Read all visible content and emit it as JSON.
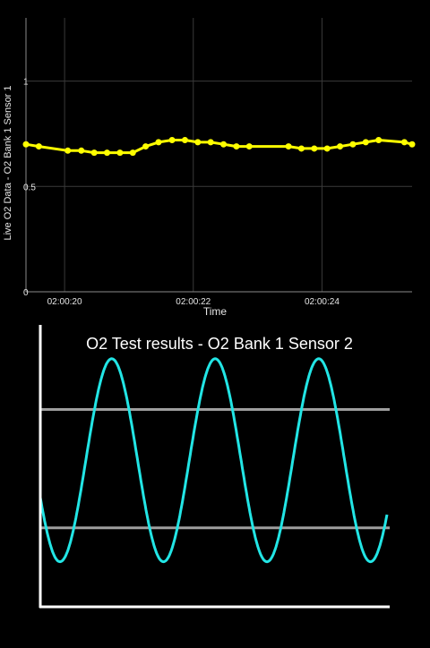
{
  "chart_data": [
    {
      "type": "line",
      "title": "",
      "xlabel": "Time",
      "ylabel": "Live O2 Data - O2 Bank 1 Sensor 1",
      "x_tick_labels": [
        "02:00:20",
        "02:00:22",
        "02:00:24"
      ],
      "x_tick_values": [
        20,
        22,
        24
      ],
      "y_tick_labels": [
        "0",
        "0.5",
        "1"
      ],
      "y_tick_values": [
        0,
        0.5,
        1
      ],
      "xlim": [
        19.4,
        25.4
      ],
      "ylim": [
        0,
        1.3
      ],
      "grid": true,
      "series": [
        {
          "color": "#FFFF00",
          "x": [
            19.4,
            19.6,
            20.05,
            20.26,
            20.46,
            20.66,
            20.86,
            21.06,
            21.26,
            21.46,
            21.67,
            21.87,
            22.07,
            22.27,
            22.47,
            22.67,
            22.87,
            23.48,
            23.68,
            23.88,
            24.08,
            24.28,
            24.48,
            24.68,
            24.88,
            25.28,
            25.4
          ],
          "y": [
            0.7,
            0.69,
            0.67,
            0.67,
            0.66,
            0.66,
            0.66,
            0.66,
            0.69,
            0.71,
            0.72,
            0.72,
            0.71,
            0.71,
            0.7,
            0.69,
            0.69,
            0.69,
            0.68,
            0.68,
            0.68,
            0.69,
            0.7,
            0.71,
            0.72,
            0.71,
            0.7
          ]
        }
      ]
    },
    {
      "type": "line",
      "title": "O2 Test results - O2 Bank 1 Sensor 2",
      "xlabel": "",
      "ylabel": "",
      "xlim": [
        0,
        1
      ],
      "ylim": [
        0,
        1
      ],
      "grid": false,
      "threshold_levels": [
        0.28,
        0.7
      ],
      "threshold_color": "#9E9E9E",
      "series": [
        {
          "color": "#22E5E5",
          "min": 0.16,
          "max": 0.88,
          "cycles": 3.35,
          "phase_start": 0.56
        }
      ]
    }
  ]
}
